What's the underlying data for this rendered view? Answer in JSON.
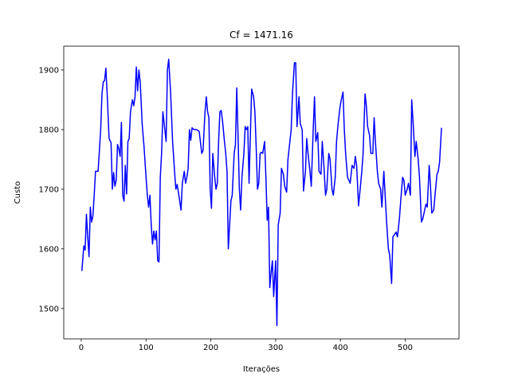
{
  "chart_data": {
    "type": "line",
    "title": "Cf = 1471.16",
    "x_label": "Iterações",
    "y_label": "Custo",
    "xlim": [
      -27,
      583
    ],
    "ylim": [
      1449,
      1940
    ],
    "xticks": [
      0,
      100,
      200,
      300,
      400,
      500
    ],
    "yticks": [
      1500,
      1600,
      1700,
      1800,
      1900
    ],
    "x": [
      1,
      4,
      6,
      8,
      10,
      12,
      14,
      16,
      18,
      20,
      22,
      26,
      28,
      30,
      32,
      34,
      36,
      38,
      40,
      43,
      46,
      48,
      50,
      52,
      54,
      56,
      58,
      60,
      62,
      64,
      66,
      68,
      70,
      72,
      74,
      76,
      79,
      81,
      83,
      85,
      87,
      89,
      91,
      94,
      97,
      100,
      102,
      104,
      106,
      108,
      110,
      112,
      114,
      116,
      118,
      120,
      122,
      124,
      126,
      129,
      131,
      133,
      135,
      138,
      141,
      144,
      146,
      148,
      150,
      152,
      154,
      156,
      159,
      161,
      163,
      165,
      167,
      169,
      171,
      174,
      178,
      182,
      186,
      188,
      191,
      193,
      195,
      197,
      199,
      201,
      203,
      206,
      208,
      210,
      212,
      214,
      216,
      218,
      221,
      223,
      225,
      227,
      229,
      231,
      233,
      236,
      238,
      240,
      242,
      244,
      246,
      248,
      251,
      253,
      255,
      257,
      259,
      261,
      263,
      266,
      268,
      270,
      272,
      274,
      276,
      278,
      280,
      283,
      285,
      287,
      289,
      291,
      293,
      295,
      297,
      300,
      302,
      304,
      307,
      309,
      312,
      314,
      317,
      319,
      321,
      324,
      326,
      329,
      331,
      333,
      336,
      338,
      341,
      343,
      346,
      348,
      350,
      353,
      355,
      358,
      360,
      362,
      365,
      367,
      370,
      372,
      375,
      377,
      379,
      382,
      384,
      387,
      389,
      392,
      394,
      396,
      399,
      401,
      404,
      406,
      408,
      411,
      413,
      415,
      418,
      421,
      423,
      425,
      428,
      430,
      433,
      435,
      438,
      440,
      442,
      445,
      447,
      450,
      452,
      454,
      457,
      459,
      462,
      464,
      467,
      469,
      471,
      474,
      476,
      479,
      481,
      484,
      486,
      488,
      491,
      493,
      496,
      498,
      500,
      503,
      505,
      508,
      510,
      512,
      515,
      517,
      520,
      522,
      525,
      527,
      529,
      532,
      534,
      537,
      539,
      541,
      544,
      546,
      549,
      551,
      553,
      556
    ],
    "series": [
      {
        "name": "Custo",
        "color": "#0000ff",
        "values": [
          1563,
          1605,
          1598,
          1658,
          1620,
          1587,
          1670,
          1645,
          1655,
          1690,
          1730,
          1730,
          1765,
          1800,
          1860,
          1880,
          1882,
          1903,
          1860,
          1785,
          1778,
          1700,
          1728,
          1705,
          1715,
          1775,
          1768,
          1755,
          1812,
          1690,
          1680,
          1740,
          1692,
          1780,
          1785,
          1830,
          1850,
          1840,
          1855,
          1905,
          1865,
          1900,
          1880,
          1810,
          1770,
          1720,
          1690,
          1670,
          1690,
          1640,
          1608,
          1630,
          1615,
          1630,
          1580,
          1578,
          1720,
          1760,
          1830,
          1800,
          1780,
          1900,
          1918,
          1860,
          1780,
          1730,
          1700,
          1708,
          1695,
          1680,
          1665,
          1710,
          1730,
          1710,
          1720,
          1735,
          1800,
          1782,
          1803,
          1800,
          1800,
          1797,
          1760,
          1765,
          1830,
          1855,
          1830,
          1820,
          1700,
          1668,
          1760,
          1720,
          1700,
          1710,
          1780,
          1830,
          1832,
          1815,
          1780,
          1760,
          1730,
          1600,
          1640,
          1680,
          1690,
          1760,
          1775,
          1870,
          1790,
          1700,
          1665,
          1720,
          1760,
          1805,
          1800,
          1805,
          1710,
          1790,
          1868,
          1855,
          1830,
          1770,
          1700,
          1710,
          1760,
          1762,
          1760,
          1780,
          1720,
          1648,
          1670,
          1535,
          1560,
          1580,
          1520,
          1580,
          1471.16,
          1640,
          1660,
          1735,
          1725,
          1705,
          1695,
          1750,
          1770,
          1800,
          1860,
          1912,
          1912,
          1805,
          1855,
          1810,
          1800,
          1697,
          1730,
          1785,
          1760,
          1730,
          1705,
          1800,
          1855,
          1780,
          1795,
          1730,
          1725,
          1780,
          1730,
          1690,
          1700,
          1760,
          1750,
          1700,
          1690,
          1720,
          1780,
          1805,
          1835,
          1848,
          1863,
          1800,
          1760,
          1720,
          1715,
          1710,
          1740,
          1735,
          1755,
          1740,
          1672,
          1695,
          1730,
          1760,
          1860,
          1840,
          1805,
          1790,
          1760,
          1760,
          1820,
          1780,
          1730,
          1710,
          1700,
          1670,
          1730,
          1690,
          1650,
          1600,
          1590,
          1542,
          1620,
          1625,
          1628,
          1620,
          1650,
          1680,
          1720,
          1715,
          1690,
          1700,
          1710,
          1690,
          1850,
          1815,
          1755,
          1780,
          1750,
          1720,
          1645,
          1650,
          1660,
          1675,
          1670,
          1740,
          1705,
          1660,
          1665,
          1690,
          1725,
          1730,
          1745,
          1803
        ]
      }
    ]
  }
}
